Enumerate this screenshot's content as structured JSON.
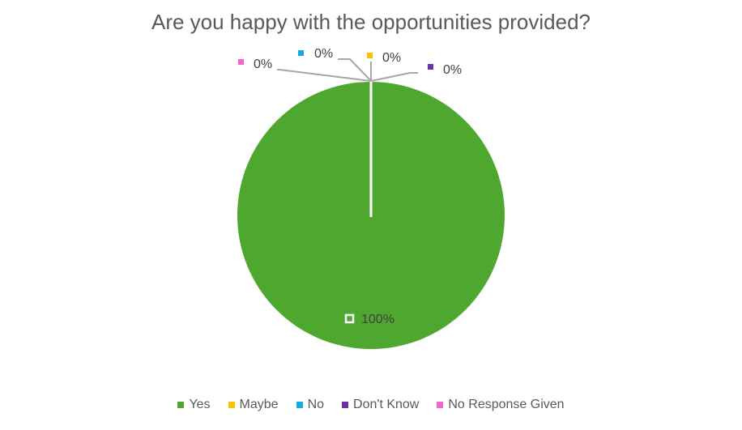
{
  "chart_data": {
    "type": "pie",
    "title": "Are you happy with the opportunities provided?",
    "categories": [
      "Yes",
      "Maybe",
      "No",
      "Don't Know",
      "No Response Given"
    ],
    "values": [
      100,
      0,
      0,
      0,
      0
    ],
    "data_labels": [
      "100%",
      "0%",
      "0%",
      "0%",
      "0%"
    ],
    "colors": [
      "#4EA72E",
      "#FFC000",
      "#18A8E8",
      "#7030A0",
      "#F266C8"
    ],
    "legend_position": "bottom"
  }
}
